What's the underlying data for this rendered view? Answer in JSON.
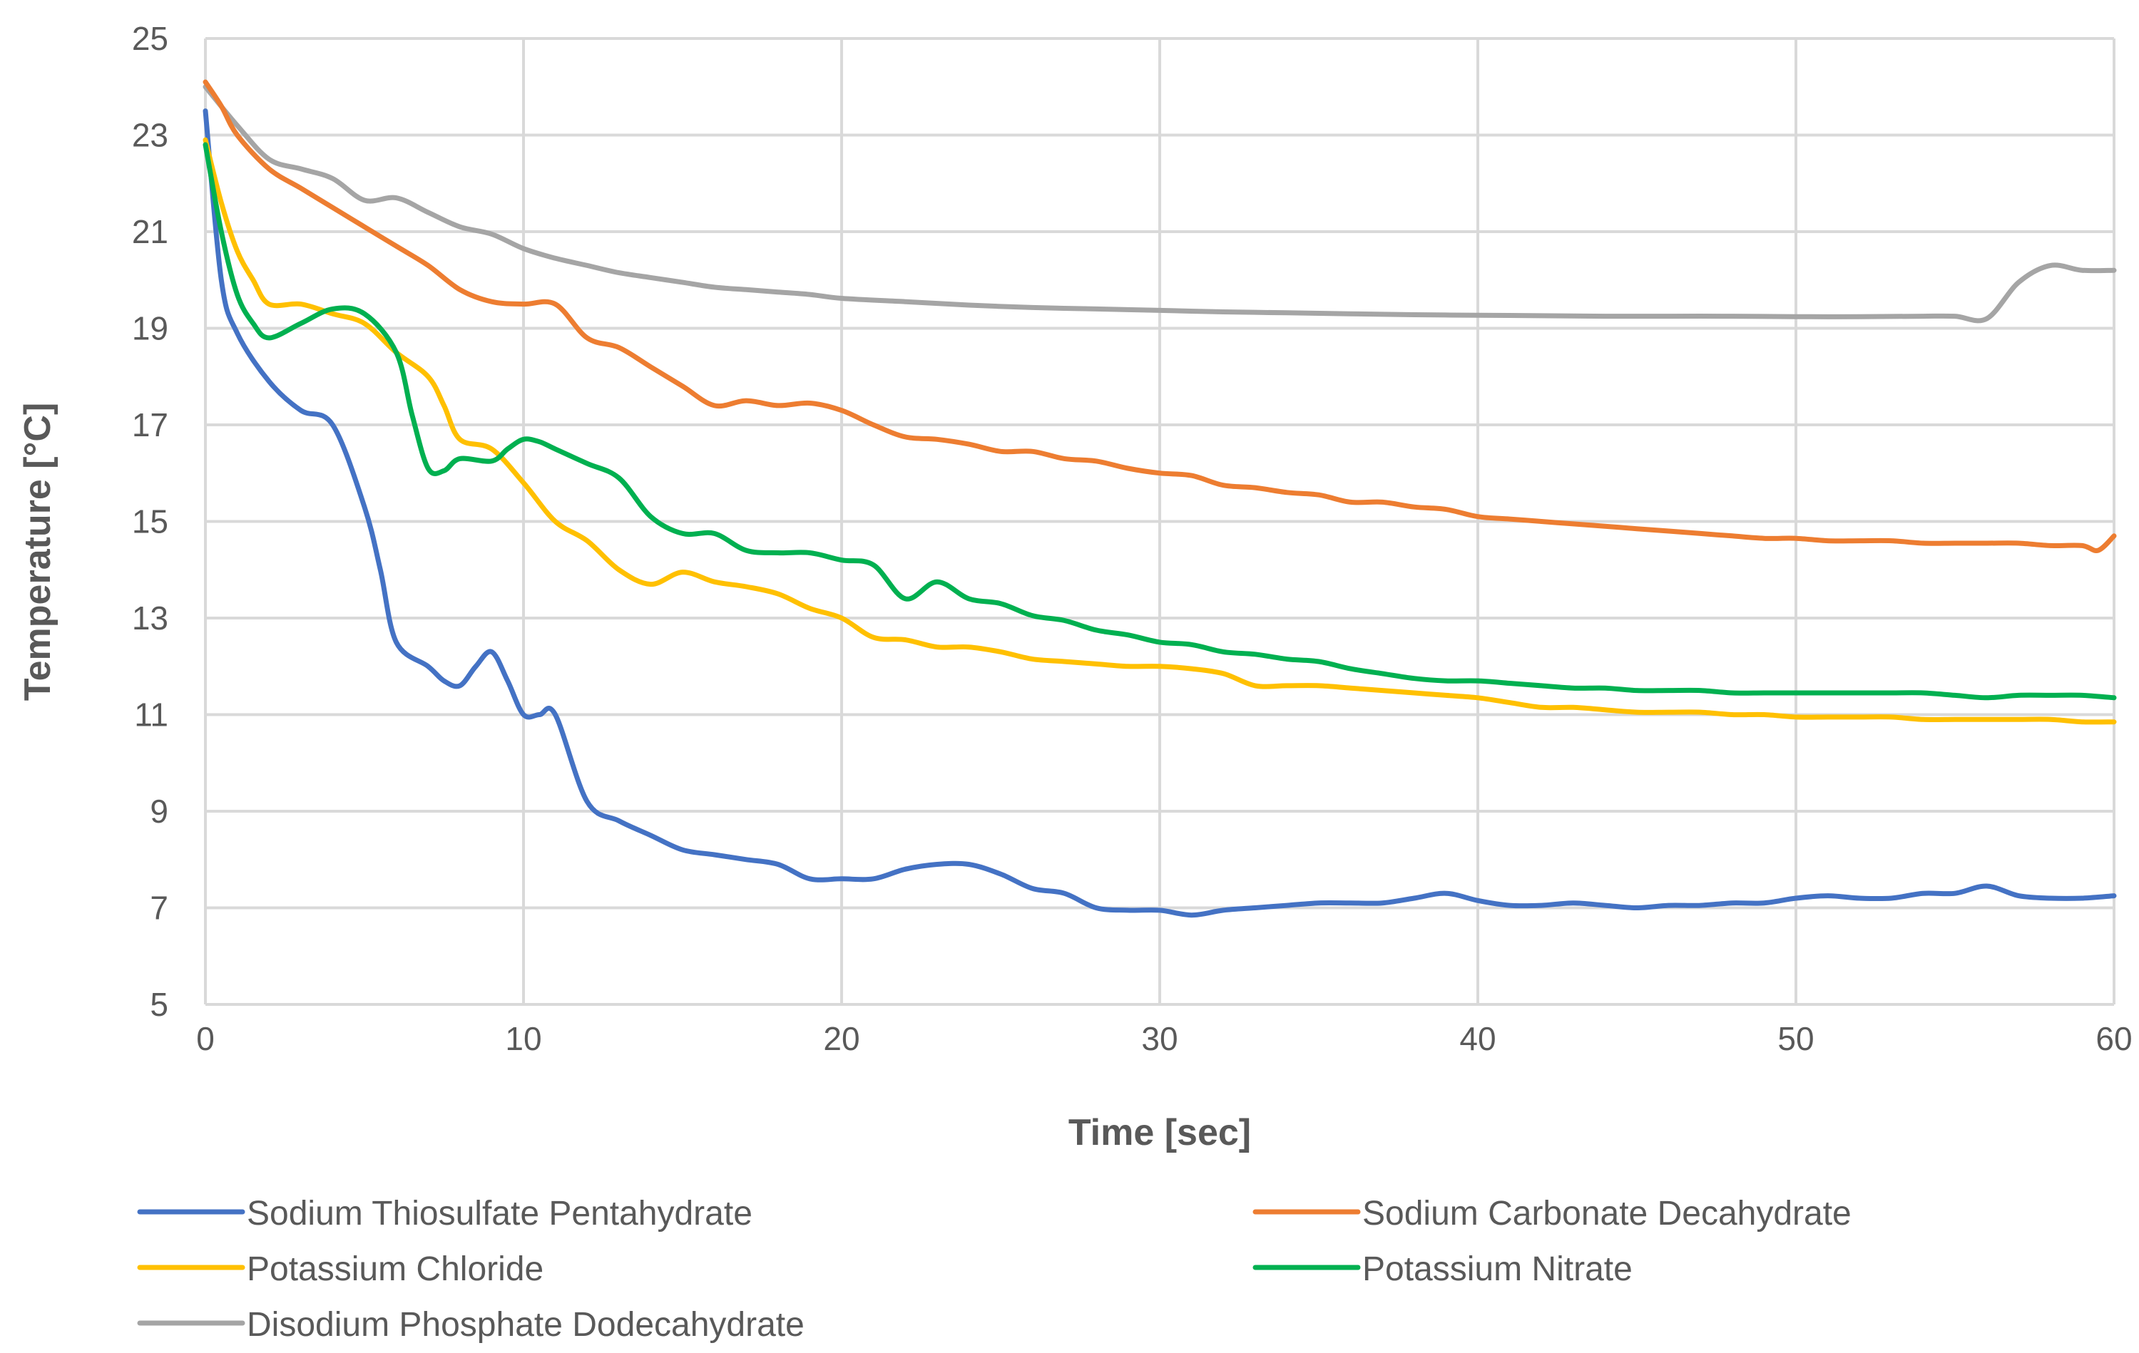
{
  "chart_data": {
    "type": "line",
    "title": "",
    "xlabel": "Time [sec]",
    "ylabel": "Temperature [°C]",
    "xlim": [
      0,
      60
    ],
    "ylim": [
      5,
      25
    ],
    "xticks": [
      0,
      10,
      20,
      30,
      40,
      50,
      60
    ],
    "yticks": [
      5,
      7,
      9,
      11,
      13,
      15,
      17,
      19,
      21,
      23,
      25
    ],
    "grid": true,
    "legend_position": "bottom",
    "series": [
      {
        "name": "Sodium Thiosulfate Pentahydrate",
        "color": "#4472C4",
        "x": [
          0,
          0.5,
          1,
          2,
          3,
          4,
          5,
          5.5,
          6,
          7,
          7.5,
          8,
          8.5,
          9,
          9.5,
          10,
          10.5,
          11,
          12,
          13,
          14,
          15,
          16,
          17,
          18,
          19,
          20,
          21,
          22,
          23,
          24,
          25,
          26,
          27,
          28,
          29,
          30,
          31,
          32,
          33,
          34,
          35,
          36,
          37,
          38,
          39,
          40,
          41,
          42,
          43,
          44,
          45,
          46,
          47,
          48,
          49,
          50,
          51,
          52,
          53,
          54,
          55,
          56,
          57,
          58,
          59,
          60
        ],
        "y": [
          23.5,
          20.0,
          18.9,
          17.9,
          17.3,
          17.0,
          15.3,
          14.0,
          12.5,
          12.0,
          11.7,
          11.6,
          12.0,
          12.3,
          11.7,
          11.0,
          11.0,
          11.0,
          9.2,
          8.8,
          8.5,
          8.2,
          8.1,
          8.0,
          7.9,
          7.6,
          7.6,
          7.6,
          7.8,
          7.9,
          7.9,
          7.7,
          7.4,
          7.3,
          7.0,
          6.95,
          6.95,
          6.85,
          6.95,
          7.0,
          7.05,
          7.1,
          7.1,
          7.1,
          7.2,
          7.3,
          7.15,
          7.05,
          7.05,
          7.1,
          7.05,
          7.0,
          7.05,
          7.05,
          7.1,
          7.1,
          7.2,
          7.25,
          7.2,
          7.2,
          7.3,
          7.3,
          7.45,
          7.25,
          7.2,
          7.2,
          7.25
        ]
      },
      {
        "name": "Sodium Carbonate Decahydrate",
        "color": "#ED7D31",
        "x": [
          0,
          0.5,
          1,
          2,
          3,
          4,
          5,
          6,
          7,
          8,
          9,
          10,
          11,
          12,
          13,
          14,
          15,
          16,
          17,
          18,
          19,
          20,
          21,
          22,
          23,
          24,
          25,
          26,
          27,
          28,
          29,
          30,
          31,
          32,
          33,
          34,
          35,
          36,
          37,
          38,
          39,
          40,
          41,
          42,
          43,
          44,
          45,
          46,
          47,
          48,
          49,
          50,
          51,
          52,
          53,
          54,
          55,
          56,
          57,
          58,
          59,
          59.5,
          60
        ],
        "y": [
          24.1,
          23.6,
          23.0,
          22.3,
          21.9,
          21.5,
          21.1,
          20.7,
          20.3,
          19.8,
          19.55,
          19.5,
          19.5,
          18.8,
          18.6,
          18.2,
          17.8,
          17.4,
          17.5,
          17.4,
          17.45,
          17.3,
          17.0,
          16.75,
          16.7,
          16.6,
          16.45,
          16.45,
          16.3,
          16.25,
          16.1,
          16.0,
          15.95,
          15.75,
          15.7,
          15.6,
          15.55,
          15.4,
          15.4,
          15.3,
          15.25,
          15.1,
          15.05,
          15.0,
          14.95,
          14.9,
          14.85,
          14.8,
          14.75,
          14.7,
          14.65,
          14.65,
          14.6,
          14.6,
          14.6,
          14.55,
          14.55,
          14.55,
          14.55,
          14.5,
          14.5,
          14.4,
          14.7
        ]
      },
      {
        "name": "Potassium Chloride",
        "color": "#FFC000",
        "x": [
          0,
          0.5,
          1,
          1.5,
          2,
          3,
          4,
          5,
          6,
          7,
          7.5,
          8,
          9,
          10,
          11,
          12,
          13,
          14,
          15,
          16,
          17,
          18,
          19,
          20,
          21,
          22,
          23,
          24,
          25,
          26,
          27,
          28,
          29,
          30,
          31,
          32,
          33,
          34,
          35,
          36,
          37,
          38,
          39,
          40,
          41,
          42,
          43,
          44,
          45,
          46,
          47,
          48,
          49,
          50,
          51,
          52,
          53,
          54,
          55,
          56,
          57,
          58,
          59,
          60
        ],
        "y": [
          22.9,
          21.6,
          20.6,
          20.0,
          19.5,
          19.5,
          19.3,
          19.1,
          18.5,
          18.0,
          17.4,
          16.7,
          16.5,
          15.8,
          15.0,
          14.6,
          14.0,
          13.7,
          13.95,
          13.75,
          13.65,
          13.5,
          13.2,
          13.0,
          12.6,
          12.55,
          12.4,
          12.4,
          12.3,
          12.15,
          12.1,
          12.05,
          12.0,
          12.0,
          11.95,
          11.85,
          11.6,
          11.6,
          11.6,
          11.55,
          11.5,
          11.45,
          11.4,
          11.35,
          11.25,
          11.15,
          11.15,
          11.1,
          11.05,
          11.05,
          11.05,
          11.0,
          11.0,
          10.95,
          10.95,
          10.95,
          10.95,
          10.9,
          10.9,
          10.9,
          10.9,
          10.9,
          10.85,
          10.85
        ]
      },
      {
        "name": "Potassium Nitrate",
        "color": "#00B050",
        "x": [
          0,
          0.5,
          1,
          1.5,
          2,
          3,
          4,
          5,
          6,
          6.5,
          7,
          7.5,
          8,
          9,
          9.5,
          10,
          10.5,
          11,
          12,
          13,
          14,
          15,
          16,
          17,
          18,
          19,
          20,
          21,
          22,
          23,
          24,
          25,
          26,
          27,
          28,
          29,
          30,
          31,
          32,
          33,
          34,
          35,
          36,
          37,
          38,
          39,
          40,
          41,
          42,
          43,
          44,
          45,
          46,
          47,
          48,
          49,
          50,
          51,
          52,
          53,
          54,
          55,
          56,
          57,
          58,
          59,
          60
        ],
        "y": [
          22.8,
          21.0,
          19.7,
          19.1,
          18.8,
          19.1,
          19.4,
          19.3,
          18.5,
          17.2,
          16.1,
          16.05,
          16.3,
          16.25,
          16.5,
          16.7,
          16.65,
          16.5,
          16.2,
          15.9,
          15.1,
          14.75,
          14.75,
          14.4,
          14.35,
          14.35,
          14.2,
          14.1,
          13.4,
          13.75,
          13.4,
          13.3,
          13.05,
          12.95,
          12.75,
          12.65,
          12.5,
          12.45,
          12.3,
          12.25,
          12.15,
          12.1,
          11.95,
          11.85,
          11.75,
          11.7,
          11.7,
          11.65,
          11.6,
          11.55,
          11.55,
          11.5,
          11.5,
          11.5,
          11.45,
          11.45,
          11.45,
          11.45,
          11.45,
          11.45,
          11.45,
          11.4,
          11.35,
          11.4,
          11.4,
          11.4,
          11.35
        ]
      },
      {
        "name": "Disodium Phosphate Dodecahydrate",
        "color": "#A5A5A5",
        "x": [
          0,
          1,
          2,
          3,
          4,
          5,
          6,
          7,
          8,
          9,
          10,
          11,
          12,
          13,
          14,
          15,
          16,
          17,
          18,
          19,
          20,
          22,
          24,
          26,
          28,
          30,
          32,
          34,
          36,
          38,
          40,
          42,
          44,
          46,
          48,
          50,
          52,
          54,
          55,
          56,
          57,
          58,
          59,
          60
        ],
        "y": [
          24.0,
          23.2,
          22.5,
          22.3,
          22.1,
          21.65,
          21.7,
          21.4,
          21.1,
          20.95,
          20.65,
          20.45,
          20.3,
          20.15,
          20.05,
          19.95,
          19.85,
          19.8,
          19.75,
          19.7,
          19.62,
          19.55,
          19.48,
          19.43,
          19.4,
          19.37,
          19.34,
          19.32,
          19.3,
          19.28,
          19.27,
          19.26,
          19.25,
          19.25,
          19.25,
          19.24,
          19.24,
          19.25,
          19.25,
          19.2,
          19.95,
          20.3,
          20.2,
          20.2
        ]
      }
    ]
  }
}
